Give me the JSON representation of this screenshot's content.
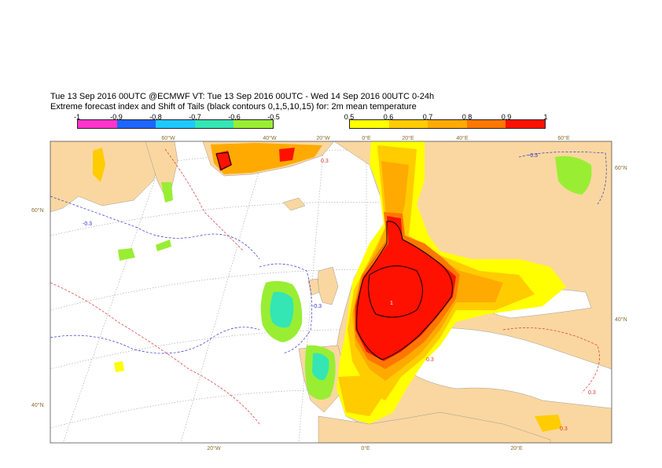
{
  "header": {
    "line1": "Tue 13 Sep 2016 00UTC @ECMWF VT: Tue 13 Sep 2016 00UTC - Wed 14 Sep 2016 00UTC  0-24h",
    "line2": "Extreme forecast index and Shift of Tails (black contours 0,1,5,10,15) for: 2m mean temperature"
  },
  "legend_negative": {
    "labels": [
      "-1",
      "-0.9",
      "-0.8",
      "-0.7",
      "-0.6",
      "-0.5"
    ],
    "colors": [
      "#ff33cc",
      "#1e64ff",
      "#1ec8ff",
      "#33e6b4",
      "#99ee33"
    ]
  },
  "legend_positive": {
    "labels": [
      "0.5",
      "0.6",
      "0.7",
      "0.8",
      "0.9",
      "1"
    ],
    "colors": [
      "#ffff00",
      "#ffcc00",
      "#ffaa00",
      "#ff7700",
      "#ff1100"
    ]
  },
  "colors": {
    "land": "#fad7a0",
    "sea": "#ffffff",
    "contour_neg": "#3333cc",
    "contour_pos": "#dd3333",
    "grid": "#999999"
  },
  "map": {
    "lon_labels_top": [
      "60°W",
      "40°W",
      "20°W",
      "0°E",
      "20°E",
      "40°E",
      "60°E"
    ],
    "lon_labels_bottom": [
      "20°W",
      "0°E",
      "20°E"
    ],
    "lat_labels_left": [
      "60°N",
      "40°N"
    ],
    "lat_labels_right": [
      "60°N",
      "40°N"
    ],
    "contour_label_neg": "-0.3",
    "contour_label_pos": "0.3",
    "sot_label": "1"
  }
}
